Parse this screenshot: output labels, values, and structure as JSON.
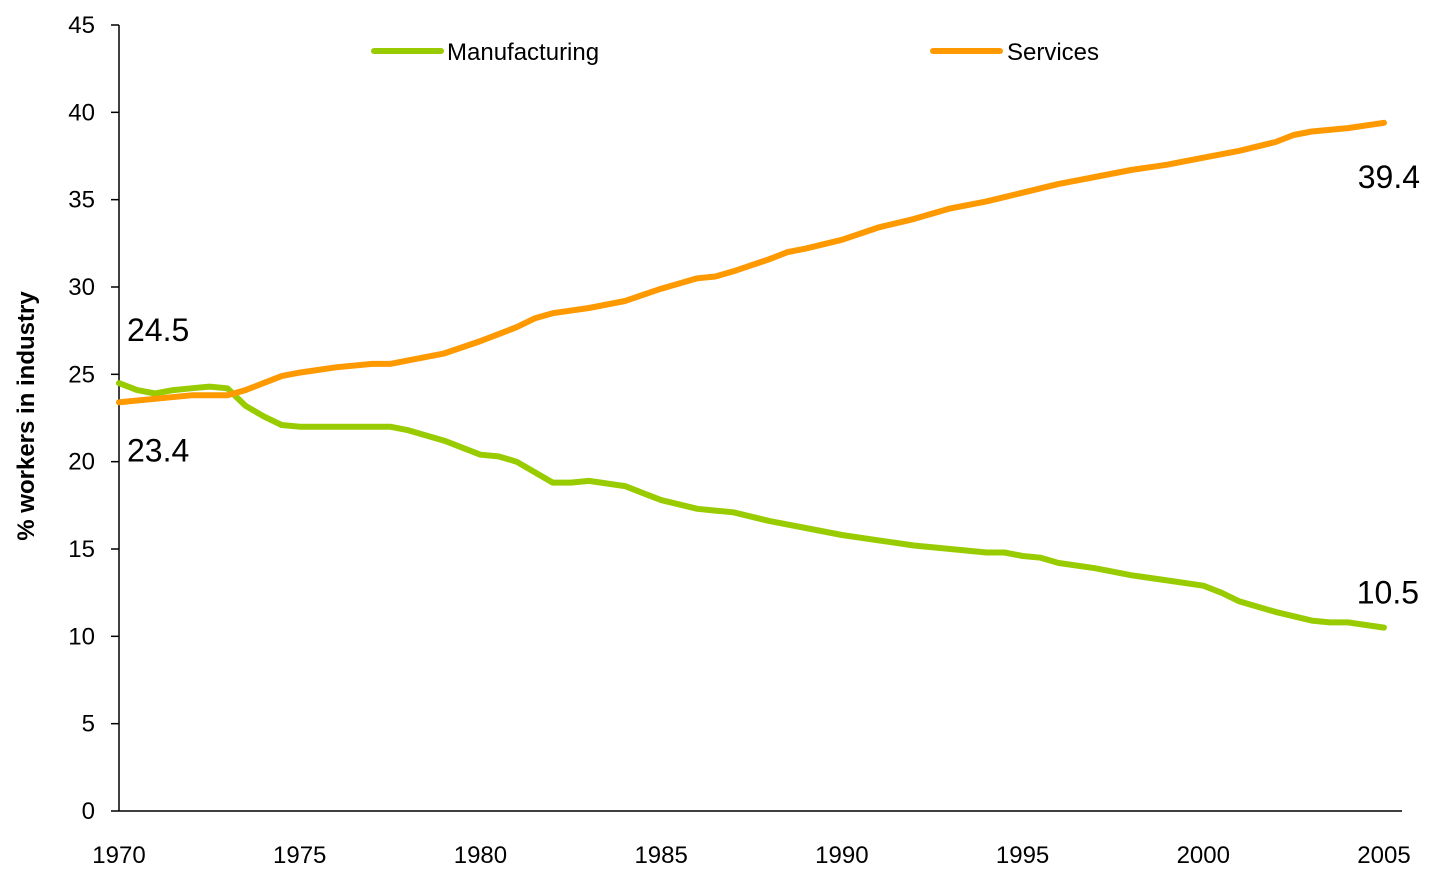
{
  "chart_data": {
    "type": "line",
    "title": "",
    "xlabel": "",
    "ylabel": "% workers in industry",
    "xlim": [
      1970,
      2005
    ],
    "ylim": [
      0,
      45
    ],
    "x_ticks": [
      1970,
      1975,
      1980,
      1985,
      1990,
      1995,
      2000,
      2005
    ],
    "y_ticks": [
      0,
      5,
      10,
      15,
      20,
      25,
      30,
      35,
      40,
      45
    ],
    "grid": false,
    "legend_position": "top",
    "series": [
      {
        "name": "Manufacturing",
        "color": "#99CC00",
        "x": [
          1970,
          1970.5,
          1971,
          1971.5,
          1972,
          1972.5,
          1973,
          1973.5,
          1974,
          1974.5,
          1975,
          1976,
          1977,
          1977.5,
          1978,
          1979,
          1980,
          1980.5,
          1981,
          1981.5,
          1982,
          1982.5,
          1983,
          1984,
          1985,
          1986,
          1986.5,
          1987,
          1988,
          1989,
          1990,
          1991,
          1992,
          1993,
          1994,
          1994.5,
          1995,
          1995.5,
          1996,
          1997,
          1998,
          1999,
          2000,
          2000.5,
          2001,
          2002,
          2003,
          2003.5,
          2004,
          2005
        ],
        "values": [
          24.5,
          24.1,
          23.9,
          24.1,
          24.2,
          24.3,
          24.2,
          23.2,
          22.6,
          22.1,
          22.0,
          22.0,
          22.0,
          22.0,
          21.8,
          21.2,
          20.4,
          20.3,
          20.0,
          19.4,
          18.8,
          18.8,
          18.9,
          18.6,
          17.8,
          17.3,
          17.2,
          17.1,
          16.6,
          16.2,
          15.8,
          15.5,
          15.2,
          15.0,
          14.8,
          14.8,
          14.6,
          14.5,
          14.2,
          13.9,
          13.5,
          13.2,
          12.9,
          12.5,
          12.0,
          11.4,
          10.9,
          10.8,
          10.8,
          10.5
        ]
      },
      {
        "name": "Services",
        "color": "#FF9900",
        "x": [
          1970,
          1971,
          1972,
          1973,
          1973.5,
          1974,
          1974.5,
          1975,
          1976,
          1977,
          1977.5,
          1978,
          1979,
          1980,
          1980.5,
          1981,
          1981.5,
          1982,
          1983,
          1984,
          1985,
          1986,
          1986.5,
          1987,
          1988,
          1988.5,
          1989,
          1990,
          1991,
          1992,
          1993,
          1994,
          1995,
          1996,
          1997,
          1998,
          1999,
          2000,
          2001,
          2002,
          2002.5,
          2003,
          2004,
          2005
        ],
        "values": [
          23.4,
          23.6,
          23.8,
          23.8,
          24.1,
          24.5,
          24.9,
          25.1,
          25.4,
          25.6,
          25.6,
          25.8,
          26.2,
          26.9,
          27.3,
          27.7,
          28.2,
          28.5,
          28.8,
          29.2,
          29.9,
          30.5,
          30.6,
          30.9,
          31.6,
          32.0,
          32.2,
          32.7,
          33.4,
          33.9,
          34.5,
          34.9,
          35.4,
          35.9,
          36.3,
          36.7,
          37.0,
          37.4,
          37.8,
          38.3,
          38.7,
          38.9,
          39.1,
          39.4
        ]
      }
    ],
    "annotations": [
      {
        "id": "mfg-start",
        "series": "Manufacturing",
        "x": 1970,
        "y": 24.5,
        "text": "24.5"
      },
      {
        "id": "svc-start",
        "series": "Services",
        "x": 1970,
        "y": 23.4,
        "text": "23.4"
      },
      {
        "id": "svc-end",
        "series": "Services",
        "x": 2005,
        "y": 39.4,
        "text": "39.4"
      },
      {
        "id": "mfg-end",
        "series": "Manufacturing",
        "x": 2005,
        "y": 10.5,
        "text": "10.5"
      }
    ]
  }
}
